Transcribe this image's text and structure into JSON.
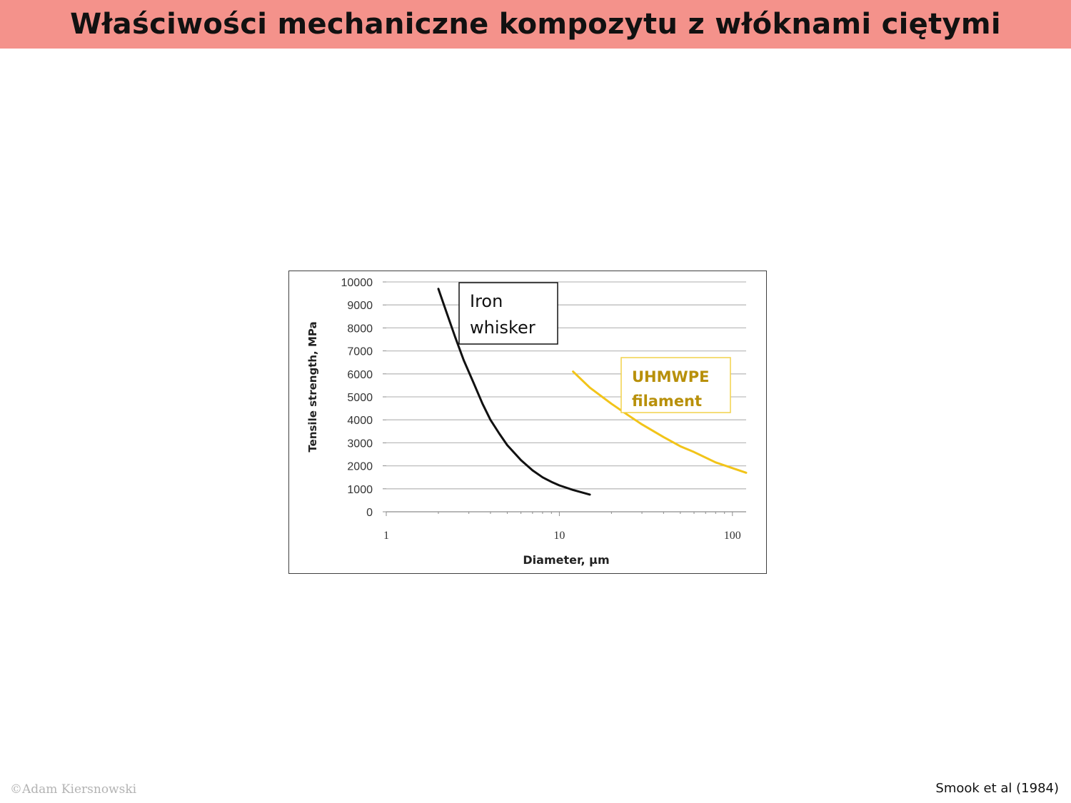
{
  "slide": {
    "title": "Właściwości mechaniczne kompozytu z włóknami ciętymi",
    "copyright": "©Adam Kiersnowski",
    "citation": "Smook et al (1984)"
  },
  "chart_data": {
    "type": "line",
    "xlabel": "Diameter, µm",
    "ylabel": "Tensile strength, MPa",
    "xscale": "log",
    "xlim": [
      1,
      120
    ],
    "ylim": [
      0,
      10000
    ],
    "x_ticks": [
      1,
      10,
      100
    ],
    "y_ticks": [
      0,
      1000,
      2000,
      3000,
      4000,
      5000,
      6000,
      7000,
      8000,
      9000,
      10000
    ],
    "grid": true,
    "series": [
      {
        "name": "Iron whisker",
        "color": "#111111",
        "label_color": "#111111",
        "label_border": "#111111",
        "x": [
          2.0,
          2.2,
          2.5,
          2.8,
          3.2,
          3.6,
          4.0,
          4.5,
          5.0,
          6.0,
          7.0,
          8.0,
          9.0,
          10.0,
          12.0,
          15.0
        ],
        "y": [
          9700,
          8800,
          7600,
          6600,
          5600,
          4700,
          4000,
          3400,
          2900,
          2250,
          1800,
          1500,
          1300,
          1150,
          950,
          750
        ]
      },
      {
        "name": "UHMWPE filament",
        "color": "#f2c419",
        "label_color": "#b8900a",
        "label_border": "#f2d24a",
        "x": [
          12,
          15,
          20,
          25,
          30,
          40,
          50,
          60,
          80,
          100,
          120
        ],
        "y": [
          6100,
          5400,
          4700,
          4200,
          3800,
          3250,
          2850,
          2600,
          2150,
          1900,
          1700
        ]
      }
    ]
  }
}
